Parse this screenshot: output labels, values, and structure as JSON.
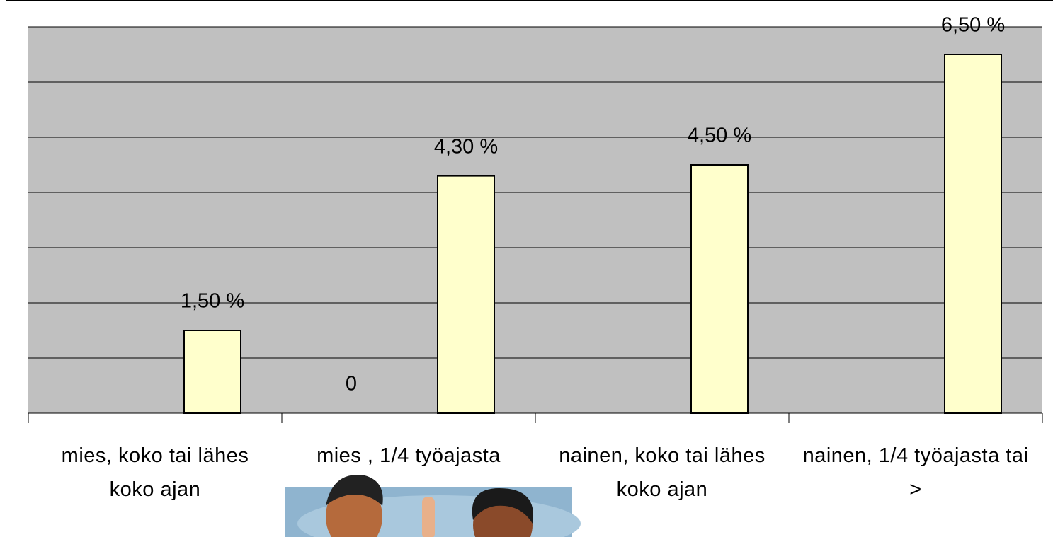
{
  "chart_data": {
    "type": "bar",
    "categories": [
      "mies, koko tai lähes koko ajan",
      "mies , 1/4 työajasta",
      "nainen, koko tai lähes koko ajan",
      "nainen, 1/4 työajasta tai >"
    ],
    "series": [
      {
        "color": "#6b6bb5",
        "values": [
          null,
          0,
          null,
          null
        ]
      },
      {
        "color": "#ffffcc",
        "values": [
          1.5,
          4.3,
          4.5,
          6.5
        ],
        "value_labels": [
          "1,50 %",
          "4,30 %",
          "4,50 %",
          "6,50 %"
        ]
      }
    ],
    "ylim": [
      0,
      7
    ],
    "yticks": [
      0,
      1,
      2,
      3,
      4,
      5,
      6,
      7
    ],
    "grid": true,
    "background": "#c0c0c0"
  }
}
